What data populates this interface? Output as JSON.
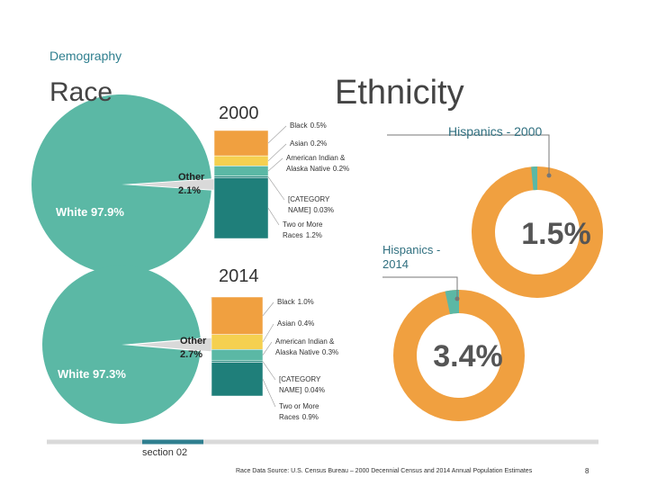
{
  "slide": {
    "kicker": "Demography",
    "race_title": "Race",
    "ethnicity_title": "Ethnicity",
    "section": "section 02",
    "source": "Race Data Source: U.S. Census Bureau – 2000 Decennial Census and 2014 Annual Population Estimates",
    "page": "8"
  },
  "chart_data": [
    {
      "type": "pie",
      "title": "2000",
      "categories": [
        "White",
        "Other"
      ],
      "values": [
        97.9,
        2.1
      ],
      "value_labels": [
        "97.9%",
        "2.1%"
      ],
      "colors": [
        "#5bb8a5",
        "#d9d9d9"
      ],
      "breakdown": {
        "categories": [
          "Black",
          "Asian",
          "American Indian & Alaska Native",
          "[CATEGORY NAME]",
          "Two or More Races"
        ],
        "values": [
          0.5,
          0.2,
          0.2,
          0.03,
          1.2
        ],
        "value_labels": [
          "0.5%",
          "0.2%",
          "0.2%",
          "0.03%",
          "1.2%"
        ],
        "colors": [
          "#f0a040",
          "#f5d050",
          "#5bb8a5",
          "#2a8a80",
          "#1f7f7a"
        ]
      }
    },
    {
      "type": "pie",
      "title": "2014",
      "categories": [
        "White",
        "Other"
      ],
      "values": [
        97.3,
        2.7
      ],
      "value_labels": [
        "97.3%",
        "2.7%"
      ],
      "colors": [
        "#5bb8a5",
        "#d9d9d9"
      ],
      "breakdown": {
        "categories": [
          "Black",
          "Asian",
          "American Indian & Alaska Native",
          "[CATEGORY NAME]",
          "Two or More Races"
        ],
        "values": [
          1.0,
          0.4,
          0.3,
          0.04,
          0.9
        ],
        "value_labels": [
          "1.0%",
          "0.4%",
          "0.3%",
          "0.04%",
          "0.9%"
        ],
        "colors": [
          "#f0a040",
          "#f5d050",
          "#5bb8a5",
          "#2a8a80",
          "#1f7f7a"
        ]
      }
    },
    {
      "type": "donut",
      "title": "Hispanics - 2000",
      "values": [
        1.5
      ],
      "value_labels": [
        "1.5%"
      ],
      "color": "#5bb8a5",
      "ring_color": "#f0a040"
    },
    {
      "type": "donut",
      "title": "Hispanics - 2014",
      "values": [
        3.4
      ],
      "value_labels": [
        "3.4%"
      ],
      "color": "#5bb8a5",
      "ring_color": "#f0a040"
    }
  ]
}
